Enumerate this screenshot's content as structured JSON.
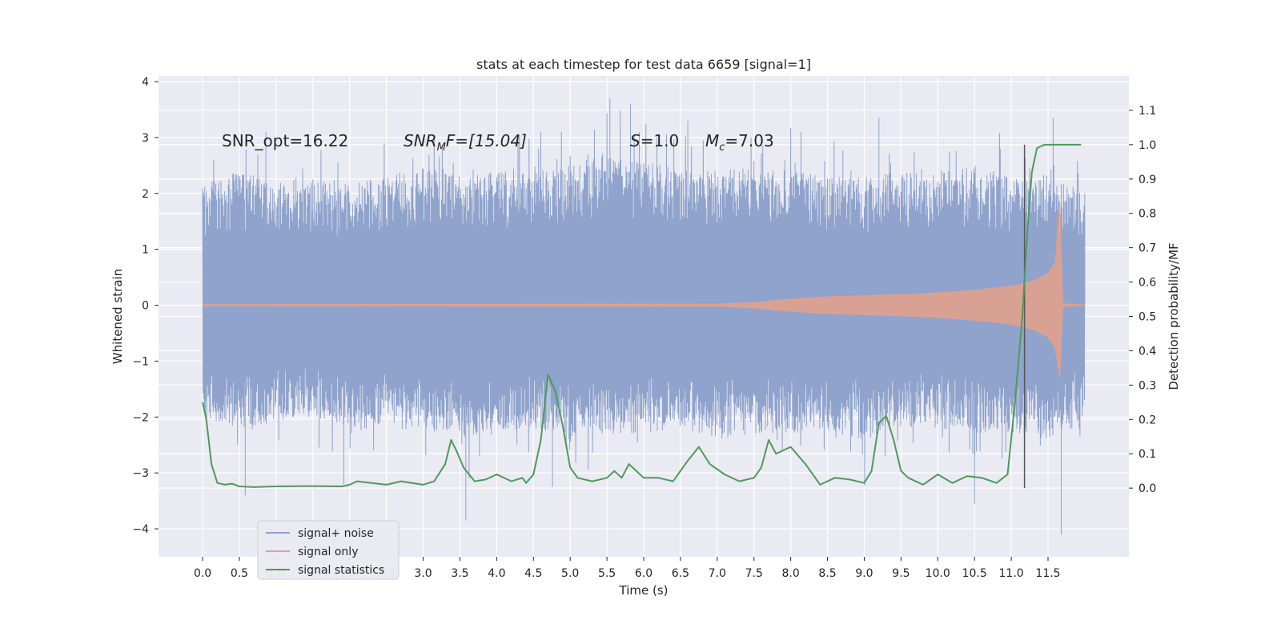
{
  "chart_data": {
    "type": "line",
    "title": "stats at each timestep for test data 6659 [signal=1]",
    "xlabel": "Time (s)",
    "ylabel_left": "Whitened strain",
    "ylabel_right": "Detection probability/MF",
    "xlim": [
      -0.6,
      12.6
    ],
    "ylim_left": [
      -4.5,
      4.1
    ],
    "ylim_right": [
      -0.2,
      1.2
    ],
    "x_ticks": [
      "0.0",
      "0.5",
      "1.0",
      "1.5",
      "2.0",
      "2.5",
      "3.0",
      "3.5",
      "4.0",
      "4.5",
      "5.0",
      "5.5",
      "6.0",
      "6.5",
      "7.0",
      "7.5",
      "8.0",
      "8.5",
      "9.0",
      "9.5",
      "10.0",
      "10.5",
      "11.0",
      "11.5"
    ],
    "y_ticks_left": [
      "4",
      "3",
      "2",
      "1",
      "0",
      "−1",
      "−2",
      "−3",
      "−4"
    ],
    "y_ticks_right": [
      "1.1",
      "1.0",
      "0.9",
      "0.8",
      "0.7",
      "0.6",
      "0.5",
      "0.4",
      "0.3",
      "0.2",
      "0.1",
      "0.0"
    ],
    "grid": true,
    "legend_position": "lower-left",
    "annotations": {
      "snr_opt": "SNR_opt=16.22",
      "snr_mf_main": "SNR",
      "snr_mf_sub": "M",
      "snr_mf_rest": "F=[15.04]",
      "s_main": "S",
      "s_rest": "=1.0",
      "mc_main": "M",
      "mc_sub": "c",
      "mc_rest": "=7.03"
    },
    "marker_line_x": 11.18,
    "series": [
      {
        "name": "signal+ noise",
        "axis": "left",
        "color": "#8fa3cc",
        "description_envelope": {
          "x": [
            0,
            0.5,
            1,
            1.5,
            2,
            2.5,
            3,
            3.5,
            4,
            4.5,
            5,
            5.5,
            6,
            6.5,
            7,
            7.5,
            8,
            8.5,
            9,
            9.5,
            10,
            10.5,
            11,
            11.5,
            12.0
          ],
          "upper": [
            2.2,
            2.4,
            2.2,
            2.3,
            2.2,
            2.3,
            2.5,
            2.3,
            2.4,
            2.4,
            2.5,
            2.8,
            2.6,
            2.4,
            2.4,
            2.5,
            2.5,
            2.3,
            2.3,
            2.4,
            2.4,
            2.5,
            2.3,
            2.3,
            2.0
          ],
          "lower": [
            -2.0,
            -2.2,
            -2.1,
            -2.0,
            -2.3,
            -2.1,
            -2.2,
            -2.4,
            -2.3,
            -2.2,
            -2.4,
            -2.3,
            -2.3,
            -2.2,
            -2.4,
            -2.3,
            -2.3,
            -2.3,
            -2.4,
            -2.2,
            -2.2,
            -2.3,
            -2.3,
            -2.4,
            -2.0
          ],
          "peaks": [
            [
              0.58,
              -3.4
            ],
            [
              0.86,
              3.1
            ],
            [
              1.92,
              -3.2
            ],
            [
              3.58,
              -3.85
            ],
            [
              4.76,
              -3.25
            ],
            [
              5.54,
              3.7
            ],
            [
              5.82,
              3.6
            ],
            [
              6.6,
              3.3
            ],
            [
              9.2,
              3.35
            ],
            [
              10.5,
              -3.55
            ],
            [
              11.57,
              3.35
            ],
            [
              11.68,
              -4.1
            ],
            [
              12.0,
              2.0
            ]
          ]
        }
      },
      {
        "name": "signal only",
        "axis": "left",
        "color": "#e6a18a",
        "x": [
          0,
          7.0,
          7.5,
          8.0,
          8.5,
          9.0,
          9.5,
          10.0,
          10.5,
          11.0,
          11.3,
          11.5,
          11.6,
          11.66,
          11.7,
          11.75,
          12.0
        ],
        "amplitude": [
          0.01,
          0.02,
          0.05,
          0.11,
          0.15,
          0.17,
          0.19,
          0.22,
          0.27,
          0.34,
          0.43,
          0.57,
          0.78,
          1.85,
          0.05,
          0.02,
          0.01
        ]
      },
      {
        "name": "signal statistics",
        "axis": "right",
        "color": "#4e9a5b",
        "x": [
          0,
          0.05,
          0.12,
          0.2,
          0.3,
          0.4,
          0.5,
          0.7,
          1.0,
          1.5,
          1.9,
          2.0,
          2.1,
          2.3,
          2.5,
          2.7,
          3.0,
          3.15,
          3.3,
          3.38,
          3.45,
          3.55,
          3.7,
          3.85,
          4.0,
          4.2,
          4.35,
          4.4,
          4.5,
          4.6,
          4.7,
          4.8,
          4.9,
          5.0,
          5.1,
          5.3,
          5.5,
          5.6,
          5.7,
          5.8,
          6.0,
          6.2,
          6.4,
          6.6,
          6.75,
          6.9,
          7.1,
          7.3,
          7.5,
          7.6,
          7.7,
          7.8,
          7.9,
          8.0,
          8.2,
          8.4,
          8.6,
          8.8,
          9.0,
          9.1,
          9.2,
          9.3,
          9.4,
          9.5,
          9.6,
          9.8,
          10.0,
          10.2,
          10.4,
          10.6,
          10.8,
          10.95,
          11.05,
          11.15,
          11.22,
          11.28,
          11.35,
          11.45,
          11.6,
          11.8,
          11.95
        ],
        "y": [
          0.25,
          0.2,
          0.07,
          0.015,
          0.01,
          0.013,
          0.005,
          0.003,
          0.005,
          0.006,
          0.005,
          0.01,
          0.02,
          0.015,
          0.01,
          0.02,
          0.01,
          0.02,
          0.07,
          0.14,
          0.11,
          0.06,
          0.02,
          0.025,
          0.04,
          0.02,
          0.03,
          0.015,
          0.04,
          0.14,
          0.33,
          0.28,
          0.18,
          0.06,
          0.03,
          0.02,
          0.03,
          0.05,
          0.03,
          0.07,
          0.03,
          0.03,
          0.02,
          0.08,
          0.12,
          0.07,
          0.04,
          0.02,
          0.03,
          0.06,
          0.14,
          0.1,
          0.11,
          0.12,
          0.07,
          0.01,
          0.03,
          0.025,
          0.015,
          0.05,
          0.19,
          0.21,
          0.14,
          0.05,
          0.03,
          0.01,
          0.04,
          0.015,
          0.035,
          0.03,
          0.015,
          0.04,
          0.25,
          0.5,
          0.75,
          0.92,
          0.99,
          1.0,
          1.0,
          1.0,
          1.0
        ]
      }
    ]
  }
}
